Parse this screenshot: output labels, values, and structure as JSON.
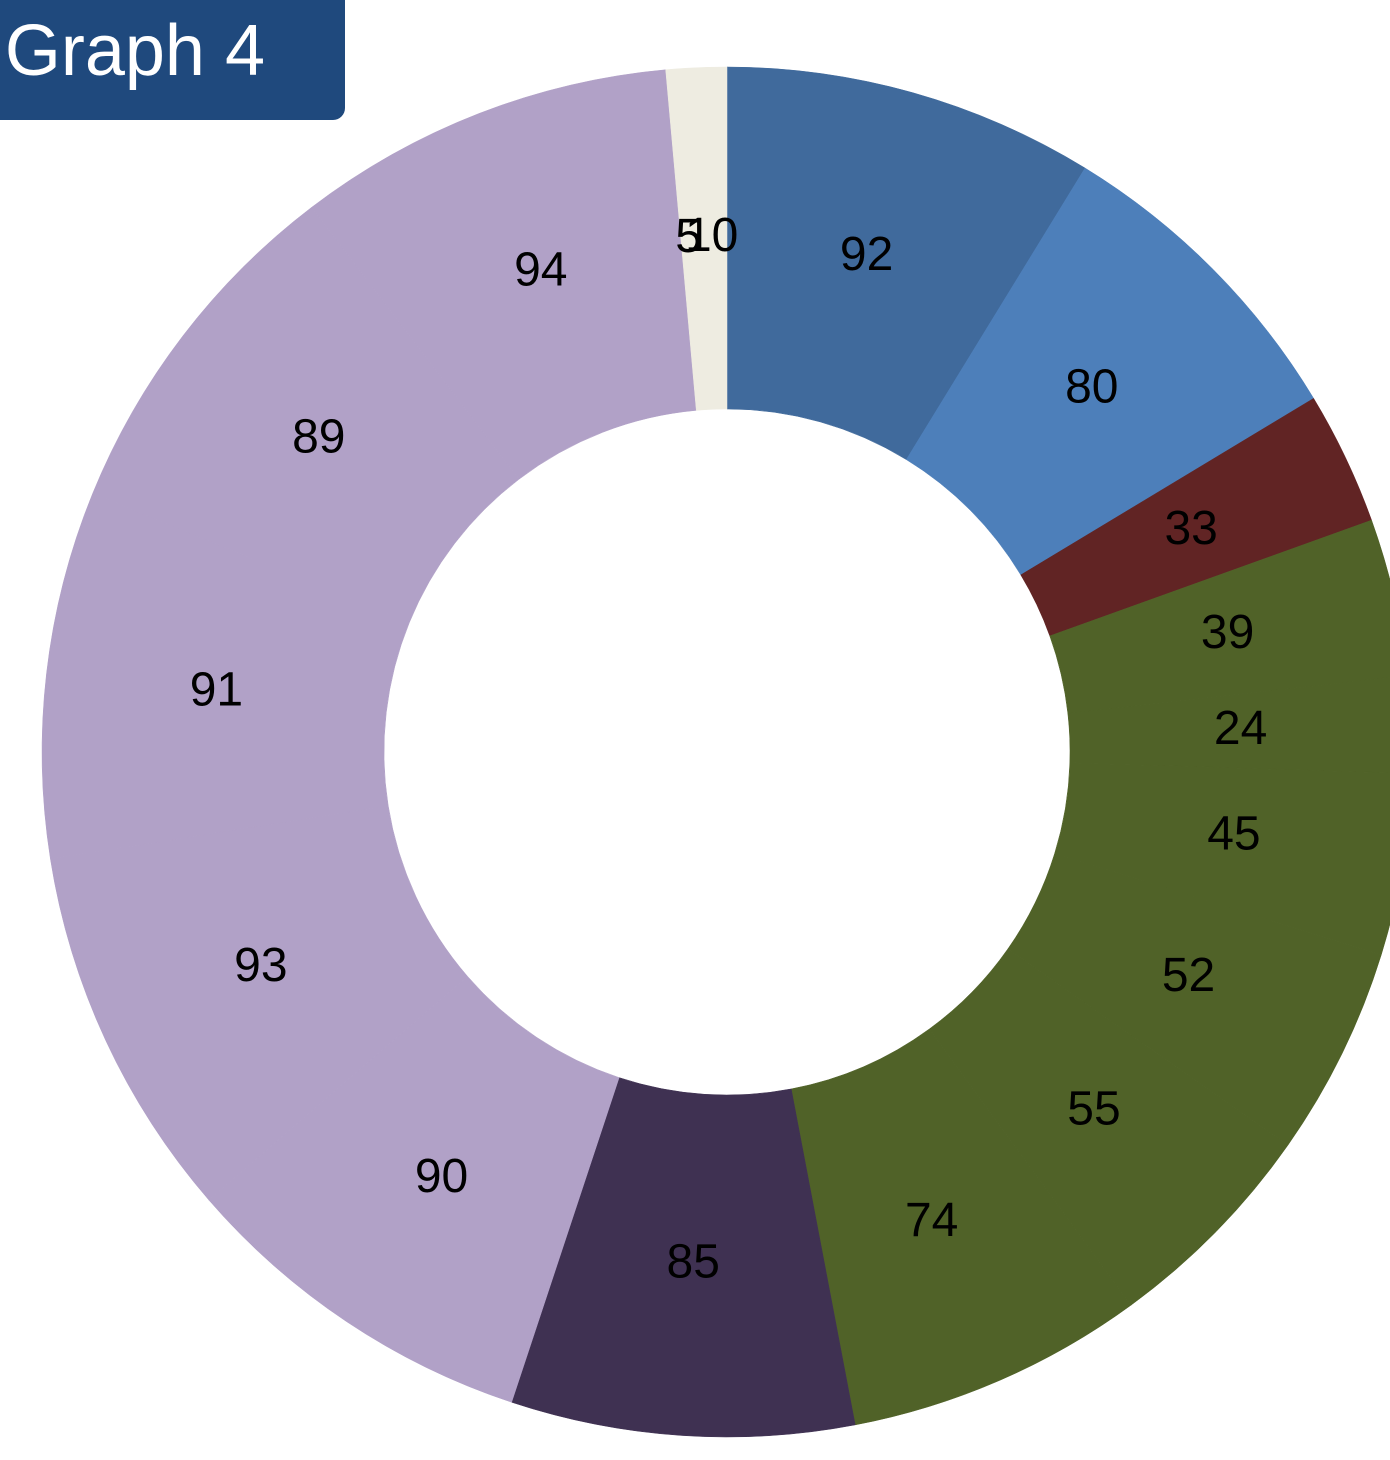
{
  "chart_data": {
    "type": "donut",
    "title": "Graph 4",
    "values": [
      92,
      80,
      33,
      39,
      24,
      45,
      52,
      55,
      74,
      85,
      90,
      93,
      91,
      89,
      94,
      5,
      10
    ],
    "colors": [
      "#406a9c",
      "#4d7fba",
      "#612424",
      "#506228",
      "#506228",
      "#506228",
      "#506228",
      "#506228",
      "#506228",
      "#3f3152",
      "#b1a1c7",
      "#b1a1c7",
      "#b1a1c7",
      "#b1a1c7",
      "#b1a1c7",
      "#eeece1",
      "#eeece1"
    ]
  }
}
